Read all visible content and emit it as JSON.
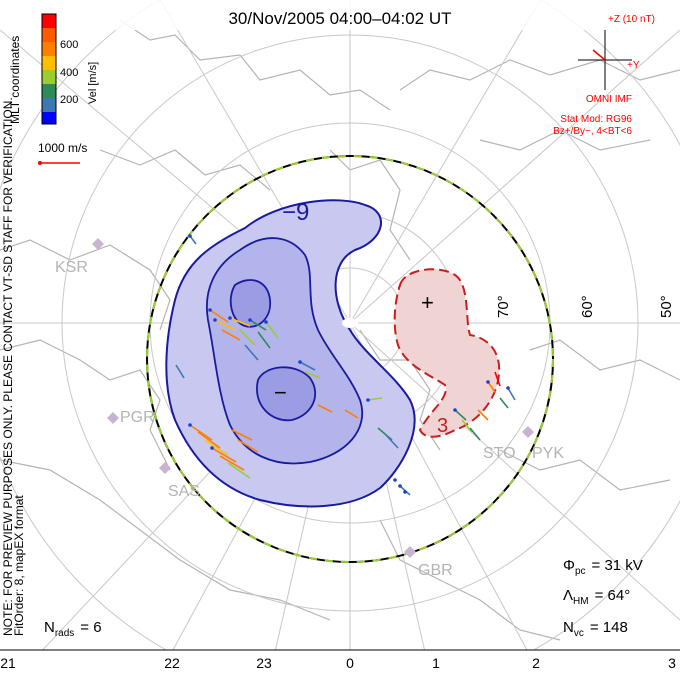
{
  "title": "30/Nov/2005 04:00–04:02 UT",
  "colorbar": {
    "label": "Vel [m/s]",
    "ticks": [
      "600",
      "400",
      "200"
    ],
    "colors": [
      "#ff0000",
      "#ff7f00",
      "#ffbf00",
      "#9acd32",
      "#2e8b57",
      "#3c78b4",
      "#1e40d0",
      "#0000ff"
    ]
  },
  "side_labels": {
    "mlt_coordinates": "MLT coordinates",
    "preview_note": "NOTE: FOR PREVIEW PURPOSES ONLY. PLEASE CONTACT VT-SD STAFF FOR VERIFICATION.",
    "fit_order": "FitOrder: 8, mapEX format"
  },
  "scale_vector": {
    "label": "1000 m/s"
  },
  "imf": {
    "z_label": "+Z (10 nT)",
    "y_label": "+Y",
    "source": "OMNI IMF",
    "stat_mod": "Stat Mod: RG96",
    "condition": "Bz+/By−, 4<BT<6"
  },
  "latitude_labels": [
    "70°",
    "60°",
    "50°"
  ],
  "contour_labels": {
    "minus_nine": "−9",
    "minus": "−",
    "plus": "+",
    "three": "3"
  },
  "stations": [
    "KSR",
    "PGR",
    "SAS",
    "STO",
    "PYK",
    "GBR"
  ],
  "stats": {
    "phi_pc": {
      "symbol": "Φ",
      "sub": "pc",
      "value": "= 31 kV"
    },
    "lambda_hm": {
      "symbol": "Λ",
      "sub": "HM",
      "value": "= 64°"
    },
    "n_vc": {
      "symbol": "N",
      "sub": "vc",
      "value": "= 148"
    },
    "n_rads": {
      "symbol": "N",
      "sub": "rads",
      "value": "= 6"
    }
  },
  "mlt_axis": [
    "21",
    "22",
    "23",
    "0",
    "1",
    "2",
    "3"
  ],
  "colors": {
    "negative_cell_fill": "#c8c8f0",
    "negative_cell_line": "#1a1aa0",
    "positive_cell_fill": "#f0d4d4",
    "positive_cell_line": "#c81e1e",
    "grid": "#c8c8c8",
    "coast": "#b4b4b4",
    "hmb_dash": "#9acd32",
    "station": "#c8b4d2"
  }
}
